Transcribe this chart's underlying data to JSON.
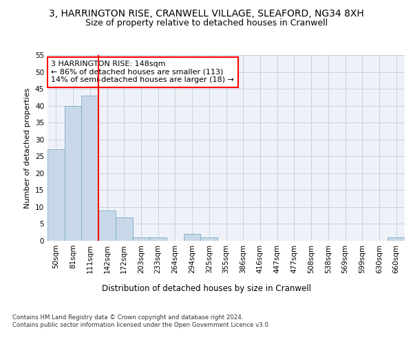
{
  "title_line1": "3, HARRINGTON RISE, CRANWELL VILLAGE, SLEAFORD, NG34 8XH",
  "title_line2": "Size of property relative to detached houses in Cranwell",
  "xlabel": "Distribution of detached houses by size in Cranwell",
  "ylabel": "Number of detached properties",
  "footnote": "Contains HM Land Registry data © Crown copyright and database right 2024.\nContains public sector information licensed under the Open Government Licence v3.0.",
  "bar_labels": [
    "50sqm",
    "81sqm",
    "111sqm",
    "142sqm",
    "172sqm",
    "203sqm",
    "233sqm",
    "264sqm",
    "294sqm",
    "325sqm",
    "355sqm",
    "386sqm",
    "416sqm",
    "447sqm",
    "477sqm",
    "508sqm",
    "538sqm",
    "569sqm",
    "599sqm",
    "630sqm",
    "660sqm"
  ],
  "bar_values": [
    27,
    40,
    43,
    9,
    7,
    1,
    1,
    0,
    2,
    1,
    0,
    0,
    0,
    0,
    0,
    0,
    0,
    0,
    0,
    0,
    1
  ],
  "bar_color": "#c8d8e8",
  "bar_edge_color": "#7aaac8",
  "grid_color": "#c0ccd8",
  "bg_color": "#eef2f8",
  "vline_color": "red",
  "vline_x_index": 3,
  "annotation_text": "3 HARRINGTON RISE: 148sqm\n← 86% of detached houses are smaller (113)\n14% of semi-detached houses are larger (18) →",
  "annotation_box_color": "red",
  "ylim": [
    0,
    55
  ],
  "yticks": [
    0,
    5,
    10,
    15,
    20,
    25,
    30,
    35,
    40,
    45,
    50,
    55
  ],
  "title_fontsize": 10,
  "subtitle_fontsize": 9,
  "axis_label_fontsize": 8.5,
  "tick_fontsize": 7.5,
  "annotation_fontsize": 8,
  "ylabel_fontsize": 8
}
